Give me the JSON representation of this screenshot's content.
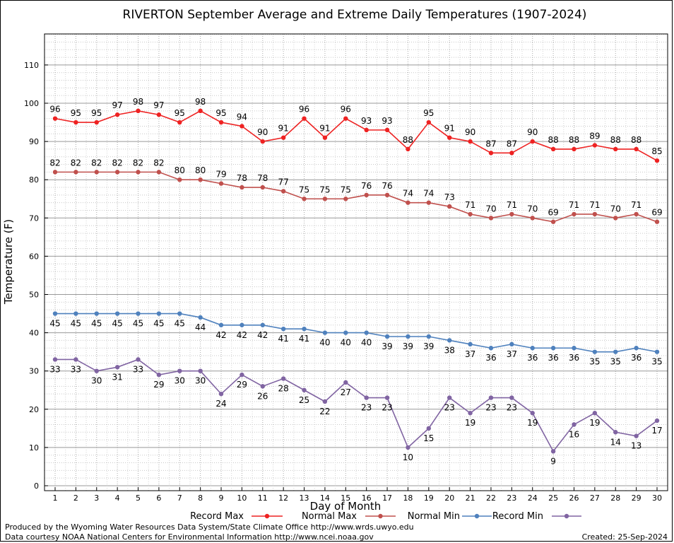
{
  "title": "RIVERTON September Average and Extreme Daily Temperatures (1907-2024)",
  "footer": {
    "produced_by": "Produced by the Wyoming Water Resources Data System/State Climate Office http://www.wrds.uwyo.edu",
    "courtesy": "Data courtesy NOAA National Centers for Environmental Information http://www.ncei.noaa.gov",
    "created": "Created:  25-Sep-2024"
  },
  "chart_data": {
    "type": "line",
    "title": "RIVERTON September Average and Extreme Daily Temperatures (1907-2024)",
    "xlabel": "Day of Month",
    "ylabel": "Temperature (F)",
    "xlim": [
      1,
      30
    ],
    "ylim": [
      0,
      118
    ],
    "y_ticks": [
      0,
      10,
      20,
      30,
      40,
      50,
      60,
      70,
      80,
      90,
      100,
      110
    ],
    "x": [
      1,
      2,
      3,
      4,
      5,
      6,
      7,
      8,
      9,
      10,
      11,
      12,
      13,
      14,
      15,
      16,
      17,
      18,
      19,
      20,
      21,
      22,
      23,
      24,
      25,
      26,
      27,
      28,
      29,
      30
    ],
    "grid": true,
    "legend_position": "bottom",
    "series": [
      {
        "name": "Record Max",
        "color": "#ee2222",
        "values": [
          96,
          95,
          95,
          97,
          98,
          97,
          95,
          98,
          95,
          94,
          90,
          91,
          96,
          91,
          96,
          93,
          93,
          88,
          95,
          91,
          90,
          87,
          87,
          90,
          88,
          88,
          89,
          88,
          88,
          85
        ]
      },
      {
        "name": "Normal Max",
        "color": "#c0504d",
        "values": [
          82,
          82,
          82,
          82,
          82,
          82,
          80,
          80,
          79,
          78,
          78,
          77,
          75,
          75,
          75,
          76,
          76,
          74,
          74,
          73,
          71,
          70,
          71,
          70,
          69,
          71,
          71,
          70,
          71,
          69
        ]
      },
      {
        "name": "Normal Min",
        "color": "#4f81bd",
        "values": [
          45,
          45,
          45,
          45,
          45,
          45,
          45,
          44,
          42,
          42,
          42,
          41,
          41,
          40,
          40,
          40,
          39,
          39,
          39,
          38,
          37,
          36,
          37,
          36,
          36,
          36,
          35,
          35,
          36,
          35
        ]
      },
      {
        "name": "Record Min",
        "color": "#8064a2",
        "values": [
          33,
          33,
          30,
          31,
          33,
          29,
          30,
          30,
          24,
          29,
          26,
          28,
          25,
          22,
          27,
          23,
          23,
          10,
          15,
          23,
          19,
          23,
          23,
          19,
          9,
          16,
          19,
          14,
          13,
          17
        ]
      }
    ]
  }
}
